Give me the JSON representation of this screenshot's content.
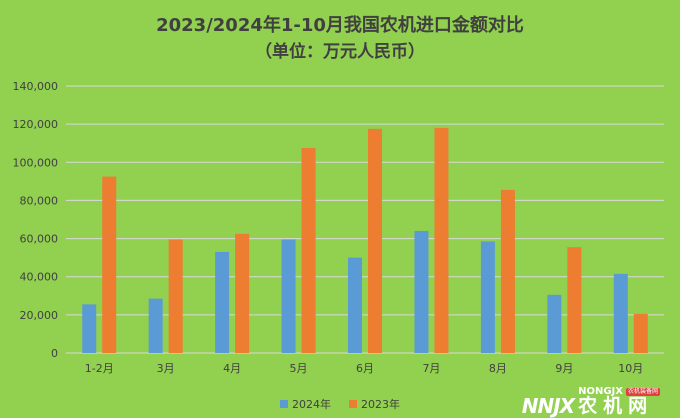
{
  "chart_data": {
    "type": "bar",
    "title": "2023/2024年1-10月我国农机进口金额对比",
    "subtitle": "（单位：万元人民币）",
    "categories": [
      "1-2月",
      "3月",
      "4月",
      "5月",
      "6月",
      "7月",
      "8月",
      "9月",
      "10月"
    ],
    "series": [
      {
        "name": "2024年",
        "color": "#5b9bd5",
        "values": [
          25500,
          28500,
          53000,
          59500,
          50000,
          64000,
          58500,
          30500,
          41500
        ]
      },
      {
        "name": "2023年",
        "color": "#ed7d31",
        "values": [
          92500,
          59500,
          62500,
          107500,
          117500,
          118000,
          85500,
          55500,
          20500
        ]
      }
    ],
    "ylim": [
      0,
      140000
    ],
    "y_ticks": [
      "0",
      "20,000",
      "40,000",
      "60,000",
      "80,000",
      "100,000",
      "120,000",
      "140,000"
    ],
    "xlabel": "",
    "ylabel": "",
    "grid": true,
    "legend_position": "bottom",
    "background": "#92d050"
  },
  "watermark": {
    "logo": "NNJX",
    "en": "NONGJX",
    "badge": "农机装备网",
    "cn": "农机网"
  }
}
